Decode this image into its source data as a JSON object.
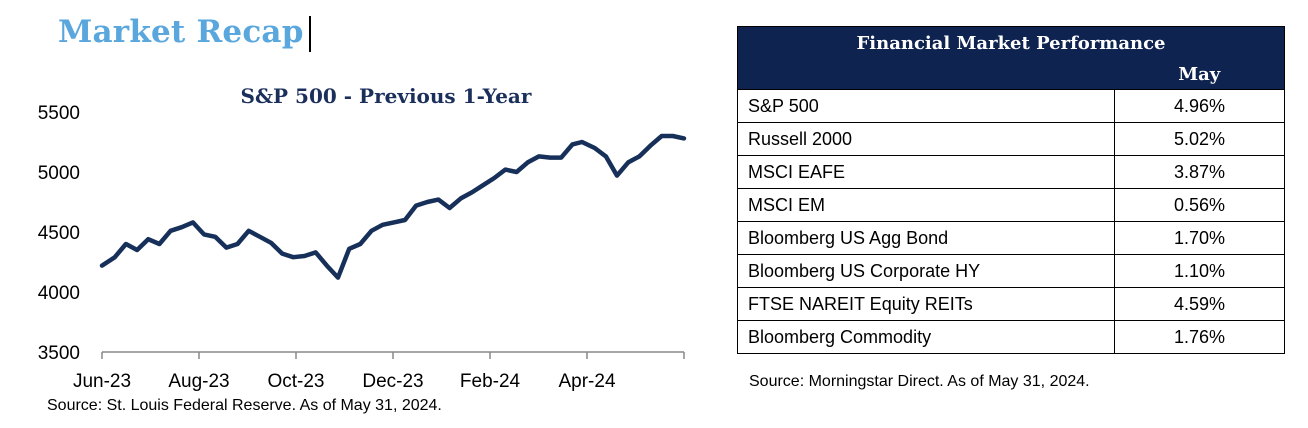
{
  "header": {
    "title": "Market Recap"
  },
  "chart_data": {
    "type": "line",
    "title": "S&P 500 - Previous 1-Year",
    "xlabel": "",
    "ylabel": "",
    "ylim": [
      3500,
      5500
    ],
    "y_ticks": [
      3500,
      4000,
      4500,
      5000,
      5500
    ],
    "x_tick_labels": [
      "Jun-23",
      "Aug-23",
      "Oct-23",
      "Dec-23",
      "Feb-24",
      "Apr-24"
    ],
    "x_range": [
      "2023-06-01",
      "2024-05-31"
    ],
    "line_color": "#17305a",
    "grid": false,
    "series": [
      {
        "x": [
          "2023-06-01",
          "2023-06-09",
          "2023-06-16",
          "2023-06-23",
          "2023-06-30",
          "2023-07-07",
          "2023-07-14",
          "2023-07-21",
          "2023-07-28",
          "2023-08-04",
          "2023-08-11",
          "2023-08-18",
          "2023-08-25",
          "2023-09-01",
          "2023-09-08",
          "2023-09-15",
          "2023-09-22",
          "2023-09-29",
          "2023-10-06",
          "2023-10-13",
          "2023-10-20",
          "2023-10-27",
          "2023-11-03",
          "2023-11-10",
          "2023-11-17",
          "2023-11-24",
          "2023-12-01",
          "2023-12-08",
          "2023-12-15",
          "2023-12-22",
          "2023-12-29",
          "2024-01-05",
          "2024-01-12",
          "2024-01-19",
          "2024-01-26",
          "2024-02-02",
          "2024-02-09",
          "2024-02-16",
          "2024-02-23",
          "2024-03-01",
          "2024-03-08",
          "2024-03-15",
          "2024-03-22",
          "2024-03-28",
          "2024-04-05",
          "2024-04-12",
          "2024-04-19",
          "2024-04-26",
          "2024-05-03",
          "2024-05-10",
          "2024-05-17",
          "2024-05-24",
          "2024-05-31"
        ],
        "values": [
          4220,
          4290,
          4400,
          4350,
          4440,
          4400,
          4510,
          4540,
          4580,
          4480,
          4460,
          4370,
          4400,
          4510,
          4460,
          4410,
          4320,
          4290,
          4300,
          4330,
          4220,
          4120,
          4360,
          4400,
          4510,
          4560,
          4580,
          4600,
          4720,
          4750,
          4770,
          4700,
          4780,
          4830,
          4890,
          4950,
          5020,
          5000,
          5080,
          5130,
          5120,
          5120,
          5230,
          5250,
          5200,
          5130,
          4970,
          5080,
          5130,
          5220,
          5300,
          5300,
          5280
        ]
      }
    ]
  },
  "chart_source": "Source: St. Louis Federal Reserve. As of May 31, 2024.",
  "table": {
    "title": "Financial Market Performance",
    "column": "May",
    "rows": [
      {
        "label": "S&P 500",
        "value": "4.96%"
      },
      {
        "label": "Russell 2000",
        "value": "5.02%"
      },
      {
        "label": "MSCI EAFE",
        "value": "3.87%"
      },
      {
        "label": "MSCI EM",
        "value": "0.56%"
      },
      {
        "label": "Bloomberg US Agg Bond",
        "value": "1.70%"
      },
      {
        "label": "Bloomberg US Corporate HY",
        "value": "1.10%"
      },
      {
        "label": "FTSE NAREIT Equity REITs",
        "value": "4.59%"
      },
      {
        "label": "Bloomberg Commodity",
        "value": "1.76%"
      }
    ],
    "source": "Source: Morningstar Direct. As of May 31, 2024."
  }
}
